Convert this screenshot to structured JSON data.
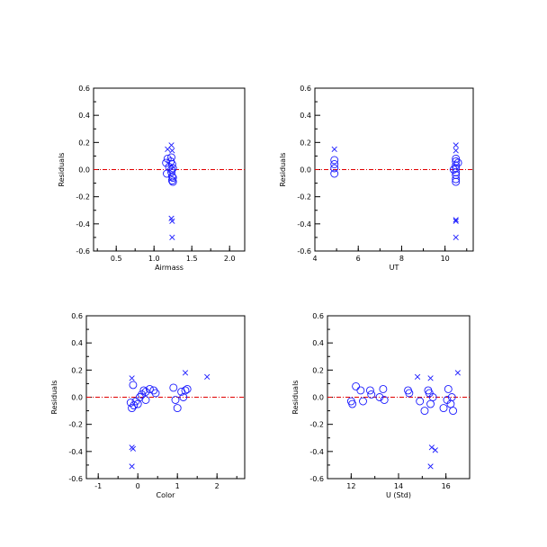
{
  "chart_data": [
    {
      "type": "scatter",
      "xlabel": "Airmass",
      "ylabel": "Residuals",
      "xlim": [
        0.2,
        2.2
      ],
      "ylim": [
        -0.6,
        0.6
      ],
      "xticks": [
        "0.5",
        "1.0",
        "1.5",
        "2.0"
      ],
      "yticks": [
        "-0.6",
        "-0.4",
        "-0.2",
        "0.0",
        "0.2",
        "0.4",
        "0.6"
      ],
      "reference_line": 0.0,
      "series": [
        {
          "marker": "circle",
          "points": [
            [
              1.16,
              0.05
            ],
            [
              1.17,
              -0.03
            ],
            [
              1.18,
              0.08
            ],
            [
              1.2,
              0.02
            ],
            [
              1.22,
              0.06
            ],
            [
              1.23,
              0.0
            ],
            [
              1.23,
              -0.02
            ],
            [
              1.24,
              0.04
            ],
            [
              1.24,
              -0.05
            ],
            [
              1.25,
              0.01
            ],
            [
              1.25,
              -0.06
            ],
            [
              1.25,
              -0.09
            ],
            [
              1.24,
              -0.08
            ],
            [
              1.23,
              0.09
            ]
          ]
        },
        {
          "marker": "cross",
          "points": [
            [
              1.18,
              0.15
            ],
            [
              1.23,
              0.18
            ],
            [
              1.24,
              0.14
            ],
            [
              1.23,
              -0.36
            ],
            [
              1.24,
              -0.38
            ],
            [
              1.24,
              -0.5
            ]
          ]
        }
      ]
    },
    {
      "type": "scatter",
      "xlabel": "UT",
      "ylabel": "Residuals",
      "xlim": [
        4,
        11.3
      ],
      "ylim": [
        -0.6,
        0.6
      ],
      "xticks": [
        "4",
        "6",
        "8",
        "10"
      ],
      "yticks": [
        "-0.6",
        "-0.4",
        "-0.2",
        "0.0",
        "0.2",
        "0.4",
        "0.6"
      ],
      "reference_line": 0.0,
      "series": [
        {
          "marker": "circle",
          "points": [
            [
              4.9,
              0.07
            ],
            [
              4.9,
              0.04
            ],
            [
              4.9,
              0.01
            ],
            [
              4.9,
              -0.03
            ],
            [
              10.5,
              0.08
            ],
            [
              10.5,
              0.06
            ],
            [
              10.5,
              0.03
            ],
            [
              10.5,
              0.01
            ],
            [
              10.5,
              -0.02
            ],
            [
              10.5,
              -0.04
            ],
            [
              10.5,
              -0.07
            ],
            [
              10.5,
              -0.09
            ],
            [
              10.4,
              0.0
            ],
            [
              10.6,
              0.05
            ]
          ]
        },
        {
          "marker": "cross",
          "points": [
            [
              4.9,
              0.15
            ],
            [
              10.5,
              0.18
            ],
            [
              10.5,
              0.14
            ],
            [
              10.5,
              -0.37
            ],
            [
              10.5,
              -0.38
            ],
            [
              10.5,
              -0.5
            ]
          ]
        }
      ]
    },
    {
      "type": "scatter",
      "xlabel": "Color",
      "ylabel": "Residuals",
      "xlim": [
        -1.3,
        2.7
      ],
      "ylim": [
        -0.6,
        0.6
      ],
      "xticks": [
        "-1",
        "0",
        "1",
        "2"
      ],
      "yticks": [
        "-0.6",
        "-0.4",
        "-0.2",
        "0.0",
        "0.2",
        "0.4",
        "0.6"
      ],
      "reference_line": 0.0,
      "series": [
        {
          "marker": "circle",
          "points": [
            [
              -0.18,
              -0.04
            ],
            [
              -0.15,
              -0.08
            ],
            [
              -0.1,
              -0.06
            ],
            [
              -0.05,
              -0.03
            ],
            [
              0.0,
              -0.05
            ],
            [
              -0.12,
              0.09
            ],
            [
              0.1,
              0.02
            ],
            [
              0.15,
              0.05
            ],
            [
              0.2,
              0.04
            ],
            [
              0.3,
              0.06
            ],
            [
              0.4,
              0.05
            ],
            [
              0.45,
              0.03
            ],
            [
              0.2,
              -0.02
            ],
            [
              0.05,
              0.0
            ],
            [
              0.9,
              0.07
            ],
            [
              0.95,
              -0.02
            ],
            [
              1.0,
              -0.08
            ],
            [
              1.1,
              0.04
            ],
            [
              1.2,
              0.05
            ],
            [
              1.25,
              0.06
            ],
            [
              1.15,
              0.0
            ]
          ]
        },
        {
          "marker": "cross",
          "points": [
            [
              -0.15,
              0.14
            ],
            [
              -0.15,
              -0.37
            ],
            [
              -0.12,
              -0.38
            ],
            [
              -0.15,
              -0.51
            ],
            [
              1.2,
              0.18
            ],
            [
              1.75,
              0.15
            ]
          ]
        }
      ]
    },
    {
      "type": "scatter",
      "xlabel": "U (Std)",
      "ylabel": "Residuals",
      "xlim": [
        11,
        17
      ],
      "ylim": [
        -0.6,
        0.6
      ],
      "xticks": [
        "12",
        "14",
        "16"
      ],
      "yticks": [
        "-0.6",
        "-0.4",
        "-0.2",
        "0.0",
        "0.2",
        "0.4",
        "0.6"
      ],
      "reference_line": 0.0,
      "series": [
        {
          "marker": "circle",
          "points": [
            [
              12.0,
              -0.03
            ],
            [
              12.05,
              -0.05
            ],
            [
              12.2,
              0.08
            ],
            [
              12.4,
              0.05
            ],
            [
              12.5,
              -0.03
            ],
            [
              12.8,
              0.05
            ],
            [
              12.85,
              0.02
            ],
            [
              13.2,
              0.0
            ],
            [
              13.35,
              0.06
            ],
            [
              13.4,
              -0.02
            ],
            [
              14.4,
              0.05
            ],
            [
              14.45,
              0.03
            ],
            [
              14.9,
              -0.03
            ],
            [
              15.1,
              -0.1
            ],
            [
              15.25,
              0.05
            ],
            [
              15.3,
              0.03
            ],
            [
              15.35,
              -0.05
            ],
            [
              15.45,
              0.0
            ],
            [
              15.9,
              -0.08
            ],
            [
              16.1,
              0.06
            ],
            [
              16.2,
              -0.05
            ],
            [
              16.25,
              0.0
            ],
            [
              16.3,
              -0.1
            ],
            [
              16.05,
              -0.02
            ]
          ]
        },
        {
          "marker": "cross",
          "points": [
            [
              14.8,
              0.15
            ],
            [
              15.35,
              0.14
            ],
            [
              15.4,
              -0.37
            ],
            [
              15.55,
              -0.39
            ],
            [
              15.35,
              -0.51
            ],
            [
              16.5,
              0.18
            ]
          ]
        }
      ]
    }
  ]
}
